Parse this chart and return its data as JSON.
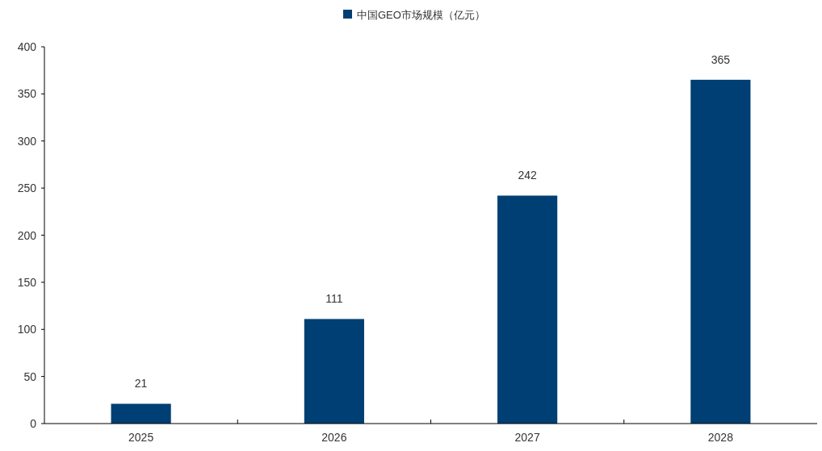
{
  "chart_data": {
    "type": "bar",
    "categories": [
      "2025",
      "2026",
      "2027",
      "2028"
    ],
    "series": [
      {
        "name": "中国GEO市场规模（亿元）",
        "color": "#003f73",
        "values": [
          21,
          111,
          242,
          365
        ]
      }
    ],
    "ylim": [
      0,
      400
    ],
    "yticks": [
      0,
      50,
      100,
      150,
      200,
      250,
      300,
      350,
      400
    ],
    "data_labels": true,
    "legend": "top",
    "grid": false
  }
}
